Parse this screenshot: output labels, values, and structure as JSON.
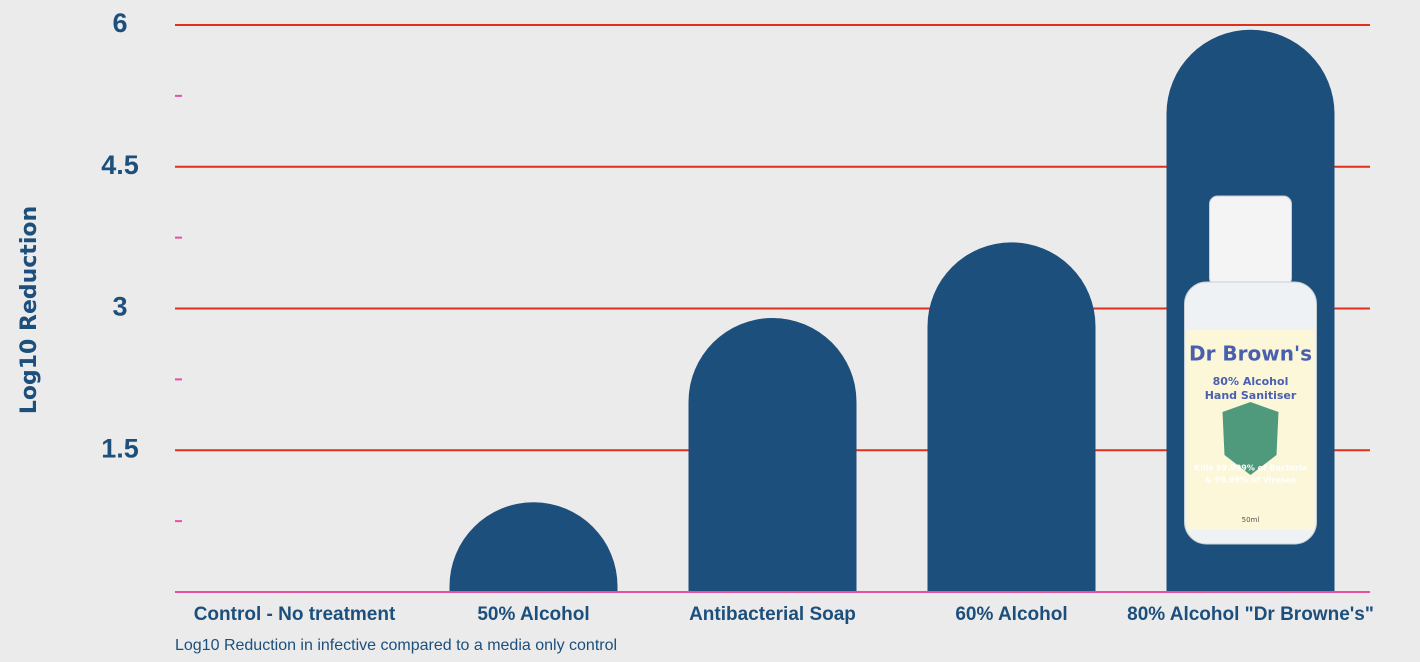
{
  "chart_data": {
    "type": "bar",
    "y_label": "Log10 Reduction",
    "caption": "Log10 Reduction in infective compared to a media only control",
    "categories": [
      "Control - No treatment",
      "50% Alcohol",
      "Antibacterial Soap",
      "60% Alcohol",
      "80% Alcohol \"Dr Browne's\""
    ],
    "values": [
      0,
      0.95,
      2.9,
      3.7,
      5.95
    ],
    "color": "#1d4f7c",
    "ylim": [
      0,
      6
    ],
    "yticks": [
      1.5,
      3,
      4.5,
      6
    ],
    "minor_yticks": [
      0.75,
      2.25,
      3.75,
      5.25
    ],
    "grid": true,
    "grid_color": "#e0301e",
    "product_label": [
      "Dr Brown's",
      "80% Alcohol",
      "Hand Sanitiser",
      "Kills 99.999% of Bacteria",
      "& 99.99% of Viruses",
      "50ml"
    ]
  }
}
